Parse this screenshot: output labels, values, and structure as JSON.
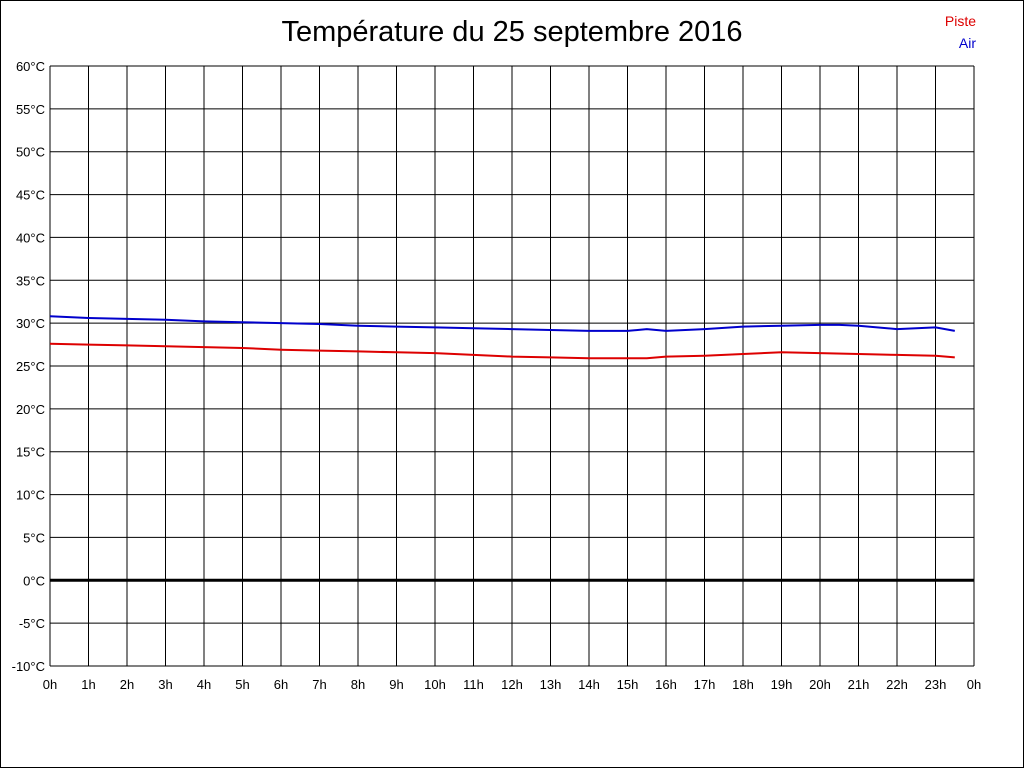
{
  "chart_data": {
    "type": "line",
    "title": "Température du 25 septembre 2016",
    "x_tick_labels": [
      "0h",
      "1h",
      "2h",
      "3h",
      "4h",
      "5h",
      "6h",
      "7h",
      "8h",
      "9h",
      "10h",
      "11h",
      "12h",
      "13h",
      "14h",
      "15h",
      "16h",
      "17h",
      "18h",
      "19h",
      "20h",
      "21h",
      "22h",
      "23h",
      "0h"
    ],
    "y_tick_labels": [
      "60°C",
      "55°C",
      "50°C",
      "45°C",
      "40°C",
      "35°C",
      "30°C",
      "25°C",
      "20°C",
      "15°C",
      "10°C",
      "5°C",
      "0°C",
      "-5°C",
      "-10°C"
    ],
    "xlim": [
      0,
      24
    ],
    "ylim": [
      -10,
      60
    ],
    "grid": true,
    "legend_position": "top-right",
    "series": [
      {
        "name": "Piste",
        "color": "#dd0000",
        "x": [
          0,
          1,
          2,
          3,
          4,
          5,
          6,
          7,
          8,
          9,
          10,
          11,
          12,
          13,
          14,
          15,
          15.5,
          16,
          17,
          18,
          19,
          20,
          21,
          22,
          23,
          23.5
        ],
        "y": [
          27.6,
          27.5,
          27.4,
          27.3,
          27.2,
          27.1,
          26.9,
          26.8,
          26.7,
          26.6,
          26.5,
          26.3,
          26.1,
          26.0,
          25.9,
          25.9,
          25.9,
          26.1,
          26.2,
          26.4,
          26.6,
          26.5,
          26.4,
          26.3,
          26.2,
          26.0
        ]
      },
      {
        "name": "Air",
        "color": "#0000cc",
        "x": [
          0,
          1,
          2,
          3,
          4,
          5,
          6,
          7,
          8,
          9,
          10,
          11,
          12,
          13,
          14,
          15,
          15.5,
          16,
          17,
          18,
          19,
          20,
          20.5,
          21,
          22,
          23,
          23.5
        ],
        "y": [
          30.8,
          30.6,
          30.5,
          30.4,
          30.2,
          30.1,
          30.0,
          29.9,
          29.7,
          29.6,
          29.5,
          29.4,
          29.3,
          29.2,
          29.1,
          29.1,
          29.3,
          29.1,
          29.3,
          29.6,
          29.7,
          29.8,
          29.8,
          29.7,
          29.3,
          29.5,
          29.1
        ]
      }
    ]
  }
}
